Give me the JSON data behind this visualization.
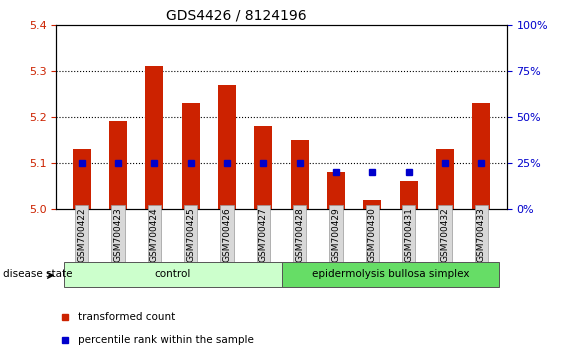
{
  "title": "GDS4426 / 8124196",
  "samples": [
    "GSM700422",
    "GSM700423",
    "GSM700424",
    "GSM700425",
    "GSM700426",
    "GSM700427",
    "GSM700428",
    "GSM700429",
    "GSM700430",
    "GSM700431",
    "GSM700432",
    "GSM700433"
  ],
  "transformed_count": [
    5.13,
    5.19,
    5.31,
    5.23,
    5.27,
    5.18,
    5.15,
    5.08,
    5.02,
    5.06,
    5.13,
    5.23
  ],
  "percentile_rank": [
    25,
    25,
    25,
    25,
    25,
    25,
    25,
    20,
    20,
    20,
    25,
    25
  ],
  "ylim_left": [
    5.0,
    5.4
  ],
  "ylim_right": [
    0,
    100
  ],
  "yticks_left": [
    5.0,
    5.1,
    5.2,
    5.3,
    5.4
  ],
  "yticks_right": [
    0,
    25,
    50,
    75,
    100
  ],
  "bar_color": "#cc2200",
  "dot_color": "#0000cc",
  "bar_baseline": 5.0,
  "groups": [
    {
      "label": "control",
      "indices": [
        0,
        1,
        2,
        3,
        4,
        5
      ],
      "color": "#ccffcc"
    },
    {
      "label": "epidermolysis bullosa simplex",
      "indices": [
        6,
        7,
        8,
        9,
        10,
        11
      ],
      "color": "#66dd66"
    }
  ],
  "group_row_label": "disease state",
  "legend_items": [
    {
      "label": "transformed count",
      "color": "#cc2200"
    },
    {
      "label": "percentile rank within the sample",
      "color": "#0000cc"
    }
  ],
  "left_axis_color": "#cc2200",
  "right_axis_color": "#0000cc",
  "grid_yticks": [
    5.1,
    5.2,
    5.3
  ],
  "fig_width": 5.63,
  "fig_height": 3.54,
  "dpi": 100
}
